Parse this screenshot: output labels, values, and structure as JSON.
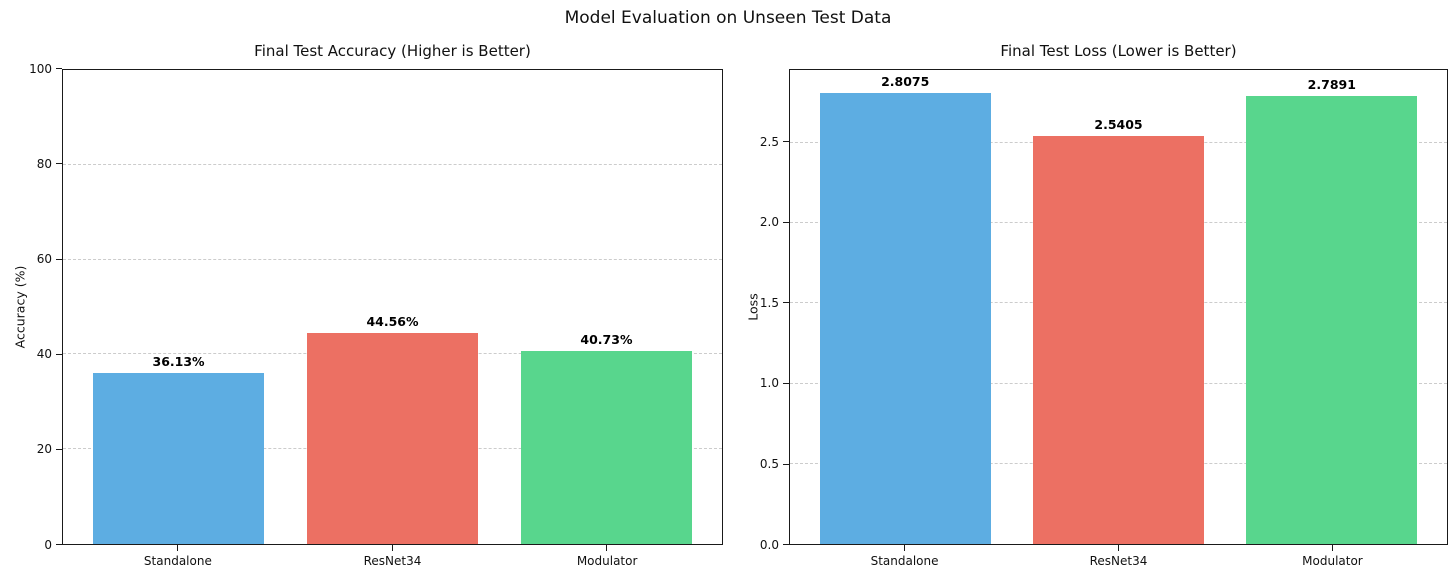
{
  "figure": {
    "title": "Model Evaluation on Unseen Test Data",
    "background": "#ffffff"
  },
  "style": {
    "bar_colors": [
      "#5DADE2",
      "#EC7063",
      "#58D68D"
    ],
    "grid_color": "#cccccc",
    "axis_color": "#1a1a1a",
    "text_color": "#111111"
  },
  "chart_data": [
    {
      "type": "bar",
      "title": "Final Test Accuracy (Higher is Better)",
      "categories": [
        "Standalone",
        "ResNet34",
        "Modulator"
      ],
      "values": [
        36.13,
        44.56,
        40.73
      ],
      "bar_labels": [
        "36.13%",
        "44.56%",
        "40.73%"
      ],
      "colors": [
        "#5DADE2",
        "#EC7063",
        "#58D68D"
      ],
      "xlabel": "",
      "ylabel": "Accuracy (%)",
      "ylim": [
        0,
        100
      ],
      "yticks": [
        0,
        20,
        40,
        60,
        80,
        100
      ],
      "ytick_labels": [
        "0",
        "20",
        "40",
        "60",
        "80",
        "100"
      ],
      "grid": "horizontal-dashed",
      "legend": null
    },
    {
      "type": "bar",
      "title": "Final Test Loss (Lower is Better)",
      "categories": [
        "Standalone",
        "ResNet34",
        "Modulator"
      ],
      "values": [
        2.8075,
        2.5405,
        2.7891
      ],
      "bar_labels": [
        "2.8075",
        "2.5405",
        "2.7891"
      ],
      "colors": [
        "#5DADE2",
        "#EC7063",
        "#58D68D"
      ],
      "xlabel": "",
      "ylabel": "Loss",
      "ylim": [
        0,
        2.953
      ],
      "yticks": [
        0.0,
        0.5,
        1.0,
        1.5,
        2.0,
        2.5
      ],
      "ytick_labels": [
        "0.0",
        "0.5",
        "1.0",
        "1.5",
        "2.0",
        "2.5"
      ],
      "grid": "horizontal-dashed",
      "legend": null
    }
  ]
}
